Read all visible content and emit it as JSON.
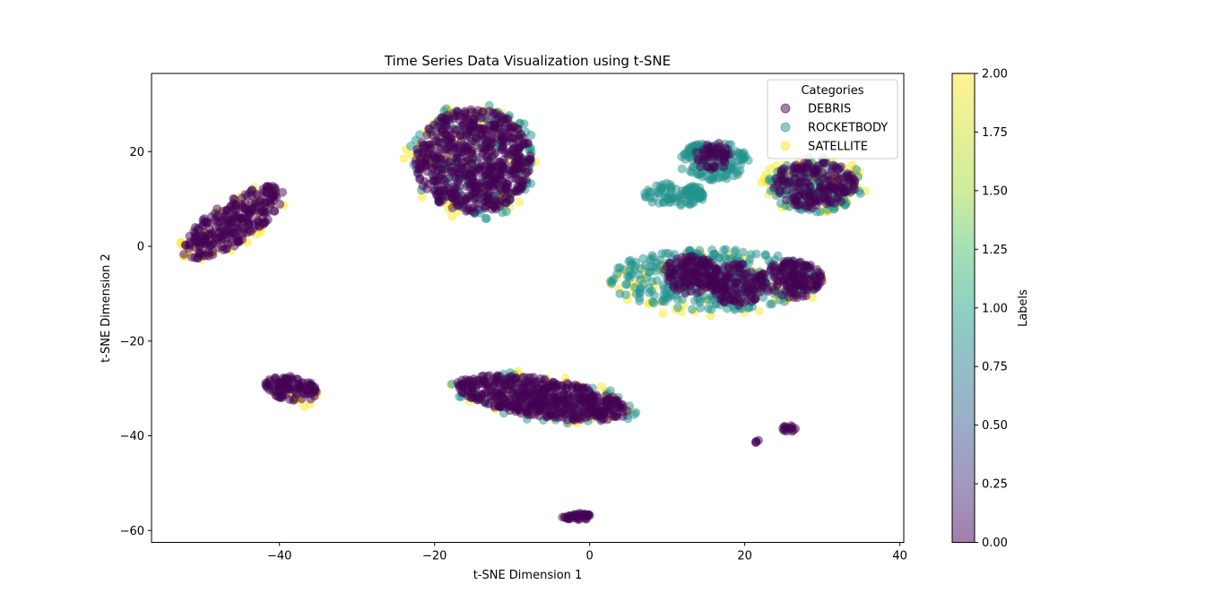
{
  "chart_data": {
    "type": "scatter",
    "title": "Time Series Data Visualization using t-SNE",
    "xlabel": "t-SNE Dimension 1",
    "ylabel": "t-SNE Dimension 2",
    "xlim": [
      -56.5,
      40.5
    ],
    "ylim": [
      -62.5,
      36.5
    ],
    "xticks": [
      -40,
      -20,
      0,
      20,
      40
    ],
    "xtick_labels": [
      "−40",
      "−20",
      "0",
      "20",
      "40"
    ],
    "yticks": [
      -60,
      -40,
      -20,
      0,
      20
    ],
    "ytick_labels": [
      "−60",
      "−40",
      "−20",
      "0",
      "20"
    ],
    "grid": false,
    "colors": {
      "debris": "#440154",
      "rocketbody": "#21918c",
      "satellite": "#fde725",
      "axis": "#000000"
    },
    "legend": {
      "title": "Categories",
      "placement": "top-right",
      "entries": [
        "DEBRIS",
        "ROCKETBODY",
        "SATELLITE"
      ]
    },
    "colorbar": {
      "label": "Labels",
      "range": [
        0,
        2
      ],
      "ticks": [
        0,
        0.25,
        0.5,
        0.75,
        1.0,
        1.25,
        1.5,
        1.75,
        2.0
      ],
      "tick_labels": [
        "0.00",
        "0.25",
        "0.50",
        "0.75",
        "1.00",
        "1.25",
        "1.50",
        "1.75",
        "2.00"
      ],
      "colormap": "viridis"
    },
    "series": [
      {
        "name": "DEBRIS",
        "label_value": 0,
        "clusters": [
          {
            "cx": -15,
            "cy": 18,
            "rx": 7.5,
            "ry": 11,
            "n": 600
          },
          {
            "cx": -46,
            "cy": 5,
            "rx": 3.5,
            "ry": 9.5,
            "angle": -38,
            "n": 260
          },
          {
            "cx": -38.5,
            "cy": -30,
            "rx": 3.5,
            "ry": 2.5,
            "angle": -25,
            "n": 100
          },
          {
            "cx": -6,
            "cy": -32,
            "rx": 11.5,
            "ry": 4,
            "angle": -15,
            "n": 500
          },
          {
            "cx": 13,
            "cy": -6,
            "rx": 3.5,
            "ry": 4,
            "n": 130
          },
          {
            "cx": 19,
            "cy": -8,
            "rx": 3.5,
            "ry": 4.5,
            "n": 130
          },
          {
            "cx": 26,
            "cy": -7,
            "rx": 4,
            "ry": 4,
            "n": 140
          },
          {
            "cx": 29,
            "cy": 13,
            "rx": 5.5,
            "ry": 5,
            "n": 180
          },
          {
            "cx": 16,
            "cy": 19,
            "rx": 2.5,
            "ry": 3,
            "n": 50
          },
          {
            "cx": -1.5,
            "cy": -57,
            "rx": 2.2,
            "ry": 0.7,
            "n": 40
          },
          {
            "cx": 25.8,
            "cy": -38.5,
            "rx": 1.0,
            "ry": 0.7,
            "n": 15
          },
          {
            "cx": 21.6,
            "cy": -41.2,
            "rx": 0.3,
            "ry": 0.3,
            "n": 4
          }
        ]
      },
      {
        "name": "ROCKETBODY",
        "label_value": 1,
        "clusters": [
          {
            "cx": 16,
            "cy": -7,
            "rx": 14,
            "ry": 6.5,
            "n": 320
          },
          {
            "cx": 16,
            "cy": 18,
            "rx": 4.5,
            "ry": 4,
            "n": 140
          },
          {
            "cx": 11,
            "cy": 11,
            "rx": 4,
            "ry": 2.5,
            "n": 90
          },
          {
            "cx": 29,
            "cy": 13,
            "rx": 6.5,
            "ry": 5.8,
            "n": 120
          },
          {
            "cx": -15,
            "cy": 18,
            "rx": 8.5,
            "ry": 12.5,
            "n": 140
          },
          {
            "cx": -6,
            "cy": -32,
            "rx": 12.5,
            "ry": 5,
            "angle": -15,
            "n": 60
          }
        ]
      },
      {
        "name": "SATELLITE",
        "label_value": 2,
        "clusters": [
          {
            "cx": -15,
            "cy": 18,
            "rx": 9,
            "ry": 12.5,
            "n": 90
          },
          {
            "cx": 16,
            "cy": -8,
            "rx": 14.5,
            "ry": 7,
            "n": 70
          },
          {
            "cx": 29,
            "cy": 13,
            "rx": 7,
            "ry": 6,
            "n": 70
          },
          {
            "cx": -6,
            "cy": -32,
            "rx": 12.5,
            "ry": 5.2,
            "angle": -15,
            "n": 45
          },
          {
            "cx": -46,
            "cy": 5,
            "rx": 4.2,
            "ry": 10,
            "angle": -38,
            "n": 40
          },
          {
            "cx": -37,
            "cy": -32,
            "rx": 2,
            "ry": 2,
            "n": 12
          }
        ]
      }
    ]
  }
}
